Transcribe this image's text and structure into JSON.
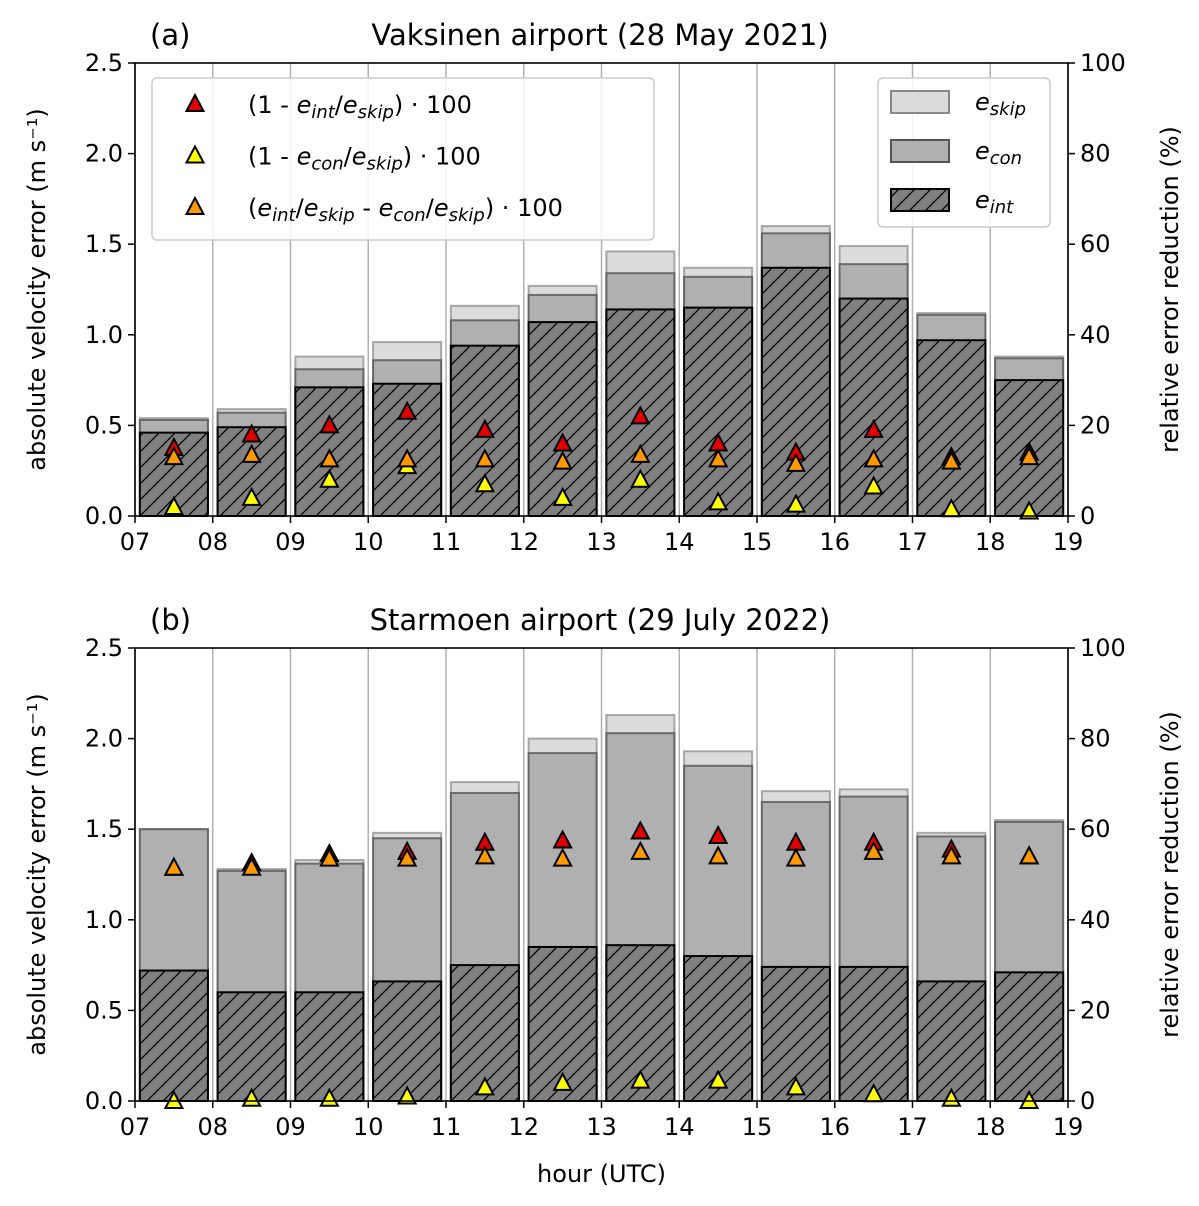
{
  "chart_data": [
    {
      "type": "bar",
      "panel_label": "(a)",
      "title": "Vaksinen airport (28 May 2021)",
      "xlabel": "",
      "ylabel": "absolute velocity error (m s⁻¹)",
      "ylabel_right": "relative error reduction (%)",
      "xlim": [
        7,
        19
      ],
      "ylim": [
        0,
        2.5
      ],
      "ylim_right": [
        0,
        100
      ],
      "x_ticks": [
        "07",
        "08",
        "09",
        "10",
        "11",
        "12",
        "13",
        "14",
        "15",
        "16",
        "17",
        "18",
        "19"
      ],
      "y_ticks": [
        "0.0",
        "0.5",
        "1.0",
        "1.5",
        "2.0",
        "2.5"
      ],
      "y_ticks_right": [
        "0",
        "20",
        "40",
        "60",
        "80",
        "100"
      ],
      "grid": "vertical",
      "x": [
        7.5,
        8.5,
        9.5,
        10.5,
        11.5,
        12.5,
        13.5,
        14.5,
        15.5,
        16.5,
        17.5,
        18.5
      ],
      "bars": {
        "e_skip": [
          0.54,
          0.59,
          0.88,
          0.96,
          1.16,
          1.27,
          1.46,
          1.37,
          1.6,
          1.49,
          1.12,
          0.88
        ],
        "e_con": [
          0.53,
          0.57,
          0.81,
          0.86,
          1.08,
          1.22,
          1.34,
          1.32,
          1.56,
          1.39,
          1.11,
          0.87
        ],
        "e_int": [
          0.46,
          0.49,
          0.71,
          0.73,
          0.94,
          1.07,
          1.14,
          1.15,
          1.37,
          1.2,
          0.97,
          0.75
        ]
      },
      "markers": {
        "red": [
          15,
          18,
          20,
          23,
          19,
          16,
          22,
          16,
          14,
          19,
          13,
          14
        ],
        "yellow": [
          2,
          4,
          8,
          11,
          7,
          4,
          8,
          3,
          2.5,
          6.5,
          1.5,
          1
        ],
        "orange": [
          13,
          13.5,
          12.5,
          12.5,
          12.5,
          12,
          13.5,
          12.5,
          11.5,
          12.5,
          12,
          13
        ]
      }
    },
    {
      "type": "bar",
      "panel_label": "(b)",
      "title": "Starmoen airport (29 July 2022)",
      "xlabel": "hour (UTC)",
      "ylabel": "absolute velocity error (m s⁻¹)",
      "ylabel_right": "relative error reduction (%)",
      "xlim": [
        7,
        19
      ],
      "ylim": [
        0,
        2.5
      ],
      "ylim_right": [
        0,
        100
      ],
      "x_ticks": [
        "07",
        "08",
        "09",
        "10",
        "11",
        "12",
        "13",
        "14",
        "15",
        "16",
        "17",
        "18",
        "19"
      ],
      "y_ticks": [
        "0.0",
        "0.5",
        "1.0",
        "1.5",
        "2.0",
        "2.5"
      ],
      "y_ticks_right": [
        "0",
        "20",
        "40",
        "60",
        "80",
        "100"
      ],
      "grid": "vertical",
      "x": [
        7.5,
        8.5,
        9.5,
        10.5,
        11.5,
        12.5,
        13.5,
        14.5,
        15.5,
        16.5,
        17.5,
        18.5
      ],
      "bars": {
        "e_skip": [
          1.5,
          1.28,
          1.33,
          1.48,
          1.76,
          2.0,
          2.13,
          1.93,
          1.71,
          1.72,
          1.48,
          1.55
        ],
        "e_con": [
          1.5,
          1.27,
          1.31,
          1.45,
          1.7,
          1.92,
          2.03,
          1.85,
          1.65,
          1.68,
          1.46,
          1.54
        ],
        "e_int": [
          0.72,
          0.6,
          0.6,
          0.66,
          0.75,
          0.85,
          0.86,
          0.8,
          0.74,
          0.74,
          0.66,
          0.71
        ]
      },
      "markers": {
        "red": [
          51.5,
          52.5,
          54.5,
          55,
          57,
          57.5,
          59.5,
          58.5,
          57,
          57,
          55.5,
          54
        ],
        "yellow": [
          0,
          0.5,
          0.5,
          1,
          3,
          4,
          4.5,
          4.5,
          3,
          1.5,
          0.5,
          0
        ],
        "orange": [
          51.5,
          51.5,
          53.5,
          53.5,
          54,
          53.5,
          55,
          54,
          53.5,
          55,
          54,
          54
        ]
      }
    }
  ],
  "legend_markers": [
    {
      "key": "red",
      "color": "#e00000",
      "segments": [
        {
          "t": "(1 - "
        },
        {
          "t": "e",
          "i": 1
        },
        {
          "t": "int",
          "s": 1,
          "i": 1
        },
        {
          "t": "/"
        },
        {
          "t": "e",
          "i": 1
        },
        {
          "t": "skip",
          "s": 1,
          "i": 1
        },
        {
          "t": ") · 100"
        }
      ]
    },
    {
      "key": "yellow",
      "color": "#ffff00",
      "segments": [
        {
          "t": "(1 - "
        },
        {
          "t": "e",
          "i": 1
        },
        {
          "t": "con",
          "s": 1,
          "i": 1
        },
        {
          "t": "/"
        },
        {
          "t": "e",
          "i": 1
        },
        {
          "t": "skip",
          "s": 1,
          "i": 1
        },
        {
          "t": ") · 100"
        }
      ]
    },
    {
      "key": "orange",
      "color": "#ff9900",
      "segments": [
        {
          "t": "("
        },
        {
          "t": "e",
          "i": 1
        },
        {
          "t": "int",
          "s": 1,
          "i": 1
        },
        {
          "t": "/"
        },
        {
          "t": "e",
          "i": 1
        },
        {
          "t": "skip",
          "s": 1,
          "i": 1
        },
        {
          "t": " - "
        },
        {
          "t": "e",
          "i": 1
        },
        {
          "t": "con",
          "s": 1,
          "i": 1
        },
        {
          "t": "/"
        },
        {
          "t": "e",
          "i": 1
        },
        {
          "t": "skip",
          "s": 1,
          "i": 1
        },
        {
          "t": ") · 100"
        }
      ]
    }
  ],
  "legend_bars": [
    {
      "key": "e_skip",
      "main": "e",
      "sub": "skip"
    },
    {
      "key": "e_con",
      "main": "e",
      "sub": "con"
    },
    {
      "key": "e_int",
      "main": "e",
      "sub": "int"
    }
  ],
  "colors": {
    "e_skip": "#dcdcdc",
    "e_con": "#b0b0b0",
    "e_int": "#808080",
    "red": "#e00000",
    "yellow": "#ffff00",
    "orange": "#ff9900",
    "grid": "#b0b0b0"
  }
}
